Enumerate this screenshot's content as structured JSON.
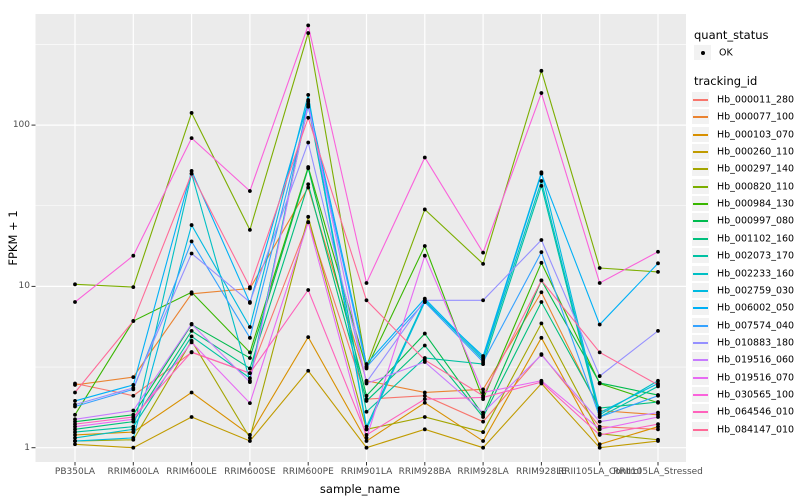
{
  "figure": {
    "background": "#FFFFFF",
    "panel_background": "#EBEBEB",
    "grid_color": "#FFFFFF",
    "axis_text_color": "#4D4D4D",
    "point_color": "#000000",
    "legend_key_fill": "#F2F2F2"
  },
  "axes": {
    "x_title": "sample_name",
    "y_title": "FPKM + 1",
    "y_tick_labels": [
      "100",
      "10",
      "1"
    ]
  },
  "legend": {
    "quant_status_title": "quant_status",
    "ok_label": "OK",
    "tracking_title": "tracking_id"
  },
  "chart_data": {
    "type": "line",
    "title": "",
    "xlabel": "sample_name",
    "ylabel": "FPKM + 1",
    "y_scale": "log10",
    "y_ticks": [
      1,
      10,
      100
    ],
    "y_minor_ticks": [
      3.162,
      31.623,
      316.228
    ],
    "ylim": [
      0.62,
      490
    ],
    "grid": "on",
    "legend_position": "right",
    "quant_status": "OK",
    "categories": [
      "PB350LA",
      "RRIM600LA",
      "RRIM600LE",
      "RRIM600SE",
      "RRIM600PE",
      "RRIM901LA",
      "RRIM928BA",
      "RRIM928LA",
      "RRIM928LE",
      "RRII105LA_Control",
      "RRII105LA_Stressed"
    ],
    "series": [
      {
        "name": "Hb_000011_280",
        "color": "#F8766D",
        "values": [
          2.5,
          2.1,
          3.9,
          2.9,
          25,
          2.0,
          2.1,
          1.45,
          3.8,
          1.35,
          1.3
        ]
      },
      {
        "name": "Hb_000077_100",
        "color": "#EA8331",
        "values": [
          2.45,
          2.74,
          9.0,
          9.7,
          41,
          2.6,
          2.2,
          2.3,
          9.2,
          1.7,
          1.6
        ]
      },
      {
        "name": "Hb_000103_070",
        "color": "#D89000",
        "values": [
          1.2,
          1.25,
          2.2,
          1.2,
          4.85,
          1.1,
          1.9,
          1.1,
          4.8,
          1.05,
          1.35
        ]
      },
      {
        "name": "Hb_000260_110",
        "color": "#C09B00",
        "values": [
          1.05,
          1.0,
          1.55,
          1.1,
          3.0,
          1.0,
          1.3,
          1.0,
          2.5,
          1.0,
          1.1
        ]
      },
      {
        "name": "Hb_000297_140",
        "color": "#A3A500",
        "values": [
          1.1,
          1.12,
          4.6,
          1.15,
          27,
          1.3,
          1.55,
          1.25,
          5.9,
          1.22,
          1.12
        ]
      },
      {
        "name": "Hb_000820_110",
        "color": "#7CAE00",
        "values": [
          10.3,
          9.9,
          119,
          22.4,
          372,
          3.2,
          30,
          13.8,
          217,
          13.0,
          12.3
        ]
      },
      {
        "name": "Hb_000984_130",
        "color": "#39B600",
        "values": [
          1.6,
          6.1,
          9.2,
          3.9,
          55,
          3.1,
          17.8,
          2.0,
          14.0,
          2.5,
          1.9
        ]
      },
      {
        "name": "Hb_000997_080",
        "color": "#00BB4E",
        "values": [
          1.45,
          1.6,
          5.8,
          3.6,
          54,
          2.1,
          5.1,
          1.6,
          10.9,
          2.52,
          2.12
        ]
      },
      {
        "name": "Hb_001102_160",
        "color": "#00BF7D",
        "values": [
          1.3,
          1.45,
          5.3,
          3.1,
          43,
          1.95,
          4.3,
          1.55,
          8.0,
          1.76,
          1.92
        ]
      },
      {
        "name": "Hb_002073_170",
        "color": "#00C1A3",
        "values": [
          1.25,
          1.35,
          4.9,
          2.7,
          133,
          1.67,
          3.6,
          3.3,
          42,
          1.55,
          2.4
        ]
      },
      {
        "name": "Hb_002233_160",
        "color": "#00BFC4",
        "values": [
          1.15,
          1.3,
          50,
          2.6,
          143,
          1.35,
          8.2,
          3.5,
          45,
          1.6,
          2.6
        ]
      },
      {
        "name": "Hb_002759_030",
        "color": "#00BAE0",
        "values": [
          1.1,
          1.15,
          24,
          5.6,
          154,
          1.3,
          8.0,
          3.7,
          51,
          1.65,
          2.5
        ]
      },
      {
        "name": "Hb_006002_050",
        "color": "#00B0F6",
        "values": [
          1.95,
          2.45,
          52,
          7.9,
          140,
          3.3,
          8.4,
          3.6,
          50,
          5.8,
          13.9
        ]
      },
      {
        "name": "Hb_007574_040",
        "color": "#35A2FF",
        "values": [
          1.8,
          2.3,
          19,
          4.8,
          130,
          3.16,
          8.0,
          3.4,
          16.3,
          1.55,
          2.1
        ]
      },
      {
        "name": "Hb_010883_180",
        "color": "#9590FF",
        "values": [
          1.85,
          2.35,
          16,
          8.0,
          78,
          2.55,
          8.2,
          8.2,
          19.4,
          2.78,
          5.3
        ]
      },
      {
        "name": "Hb_019516_060",
        "color": "#C77CFF",
        "values": [
          1.5,
          1.7,
          5.85,
          2.55,
          135,
          2.5,
          3.4,
          1.65,
          3.76,
          1.45,
          1.65
        ]
      },
      {
        "name": "Hb_019516_070",
        "color": "#E76BF3",
        "values": [
          1.35,
          1.5,
          4.5,
          1.89,
          25,
          1.15,
          15.5,
          2.2,
          2.6,
          1.3,
          1.55
        ]
      },
      {
        "name": "Hb_030565_100",
        "color": "#FA62DB",
        "values": [
          8.0,
          15.5,
          83,
          39,
          415,
          10.5,
          63,
          16.2,
          158,
          10.5,
          16.4
        ]
      },
      {
        "name": "Hb_064546_010",
        "color": "#FF62BC",
        "values": [
          1.4,
          1.55,
          3.92,
          2.9,
          9.5,
          1.2,
          2.0,
          2.05,
          2.55,
          1.2,
          1.4
        ]
      },
      {
        "name": "Hb_084147_010",
        "color": "#FF6A98",
        "values": [
          2.2,
          6.1,
          50,
          9.9,
          111,
          8.2,
          3.5,
          2.1,
          10.9,
          3.9,
          2.45
        ]
      }
    ]
  }
}
